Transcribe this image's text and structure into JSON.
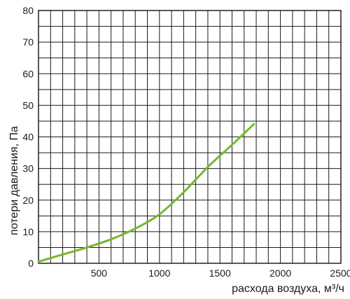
{
  "chart_data": {
    "type": "line",
    "xlabel": "расхода воздуха, м³/ч",
    "ylabel": "потери давления, Па",
    "xlim": [
      0,
      2500
    ],
    "ylim": [
      0,
      80
    ],
    "x_ticks": [
      500,
      1000,
      1500,
      2000,
      2500
    ],
    "y_ticks": [
      0,
      10,
      20,
      30,
      40,
      50,
      60,
      70,
      80
    ],
    "x_tick_labels": [
      "500",
      "1000",
      "1500",
      "2000",
      "2500"
    ],
    "y_tick_labels": [
      "0",
      "10",
      "20",
      "30",
      "40",
      "50",
      "60",
      "70",
      "80"
    ],
    "grid": true,
    "series": [
      {
        "color": "#76b82a",
        "x": [
          0,
          200,
          400,
          600,
          800,
          1000,
          1200,
          1400,
          1600,
          1780
        ],
        "y": [
          0.5,
          2.8,
          5.0,
          7.6,
          11.0,
          15.5,
          22.5,
          30.5,
          37.5,
          44.0
        ]
      }
    ]
  }
}
